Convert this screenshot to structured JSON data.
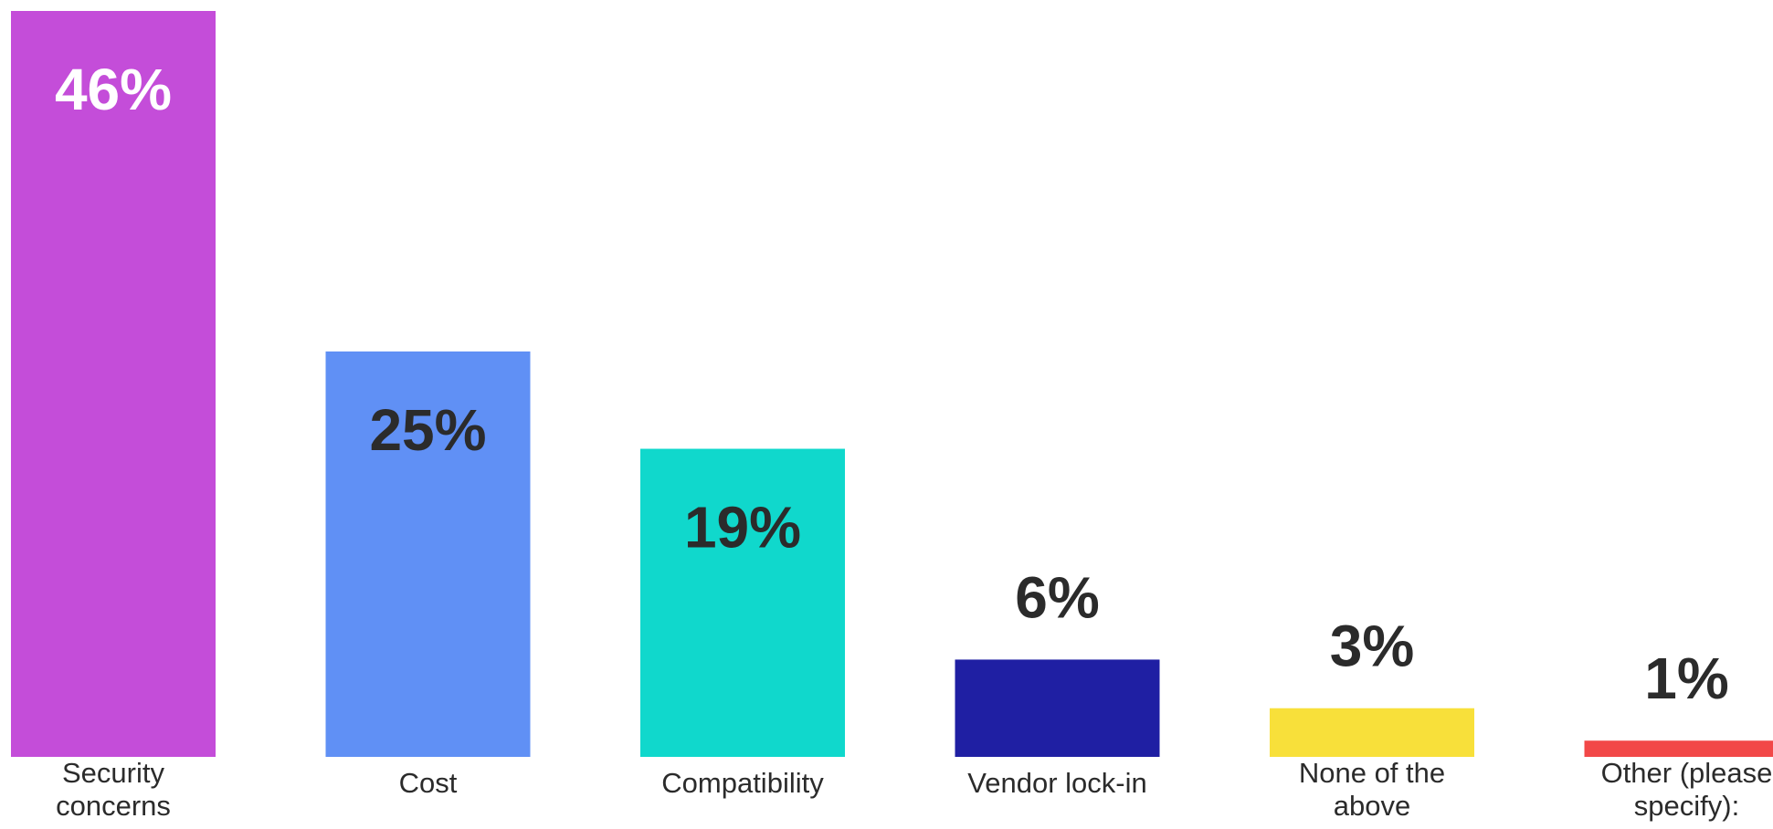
{
  "chart_data": {
    "type": "bar",
    "title": "",
    "xlabel": "",
    "ylabel": "",
    "ylim": [
      0,
      46
    ],
    "grid": false,
    "legend": "none",
    "categories": [
      [
        "Security",
        "concerns"
      ],
      [
        "Cost"
      ],
      [
        "Compatibility"
      ],
      [
        "Vendor lock-in"
      ],
      [
        "None of the",
        "above"
      ],
      [
        "Other (please",
        "specify):"
      ]
    ],
    "values": [
      46,
      25,
      19,
      6,
      3,
      1
    ],
    "value_labels": [
      "46%",
      "25%",
      "19%",
      "6%",
      "3%",
      "1%"
    ],
    "colors": [
      "#c44dd9",
      "#6090f5",
      "#10d8cc",
      "#1f1fa3",
      "#f8e03a",
      "#f24848"
    ],
    "label_colors": [
      "#ffffff",
      "#2b2b2b",
      "#2b2b2b",
      "#2b2b2b",
      "#2b2b2b",
      "#2b2b2b"
    ]
  }
}
